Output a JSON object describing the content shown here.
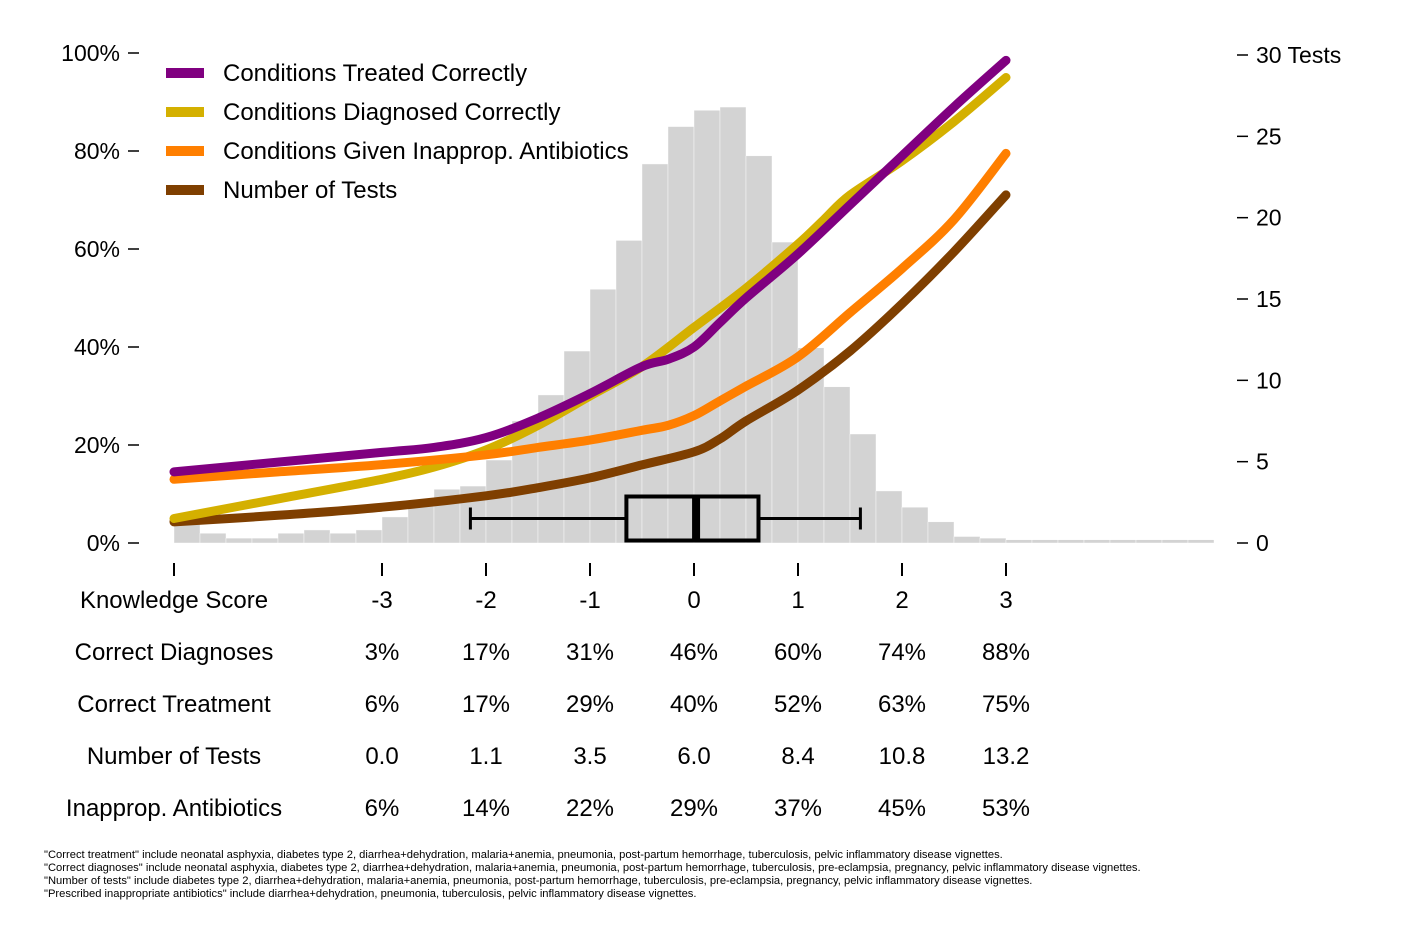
{
  "chart_data": {
    "type": "line",
    "x_axis": {
      "label": "Knowledge Score",
      "ticks": [
        -3,
        -2,
        -1,
        0,
        1,
        2,
        3
      ],
      "tick_labels": [
        "-3",
        "-2",
        "-1",
        "0",
        "1",
        "2",
        "3"
      ],
      "range": [
        -5,
        5
      ]
    },
    "y_left": {
      "ticks": [
        0,
        20,
        40,
        60,
        80,
        100
      ],
      "tick_labels": [
        "0%",
        "20%",
        "40%",
        "60%",
        "80%",
        "100%"
      ],
      "range": [
        0,
        100
      ]
    },
    "y_right": {
      "ticks": [
        0,
        5,
        10,
        15,
        20,
        25,
        30
      ],
      "tick_labels": [
        "0",
        "5",
        "10",
        "15",
        "20",
        "25",
        "30 Tests"
      ],
      "range": [
        0,
        30
      ]
    },
    "legend": {
      "placement": "top-left",
      "items": [
        {
          "label": "Conditions Treated Correctly",
          "color": "#800080"
        },
        {
          "label": "Conditions Diagnosed Correctly",
          "color": "#d4b000"
        },
        {
          "label": "Conditions Given Inapprop. Antibiotics",
          "color": "#ff7f00"
        },
        {
          "label": "Number of Tests",
          "color": "#7f3f00"
        }
      ]
    },
    "series": [
      {
        "name": "Conditions Treated Correctly",
        "axis": "left",
        "color": "#800080",
        "x": [
          -5,
          -4,
          -3,
          -2.5,
          -2,
          -1.5,
          -1,
          -0.5,
          -0.25,
          0,
          0.25,
          0.5,
          1,
          1.5,
          2,
          2.5,
          3
        ],
        "y": [
          14.5,
          16.5,
          18.5,
          19.5,
          21.5,
          25.5,
          30.5,
          36,
          37.5,
          40,
          45,
          50,
          59,
          69,
          79,
          89,
          98.5
        ]
      },
      {
        "name": "Conditions Diagnosed Correctly",
        "axis": "left",
        "color": "#d4b000",
        "x": [
          -5,
          -4,
          -3,
          -2.5,
          -2,
          -1.5,
          -1,
          -0.5,
          0,
          0.5,
          1,
          1.25,
          1.5,
          2,
          2.5,
          3
        ],
        "y": [
          5,
          9,
          13,
          15.5,
          19,
          24,
          30,
          36,
          44,
          52,
          61,
          66,
          71,
          78,
          86,
          95
        ]
      },
      {
        "name": "Conditions Given Inapprop. Antibiotics",
        "axis": "left",
        "color": "#ff7f00",
        "x": [
          -5,
          -4,
          -3,
          -2,
          -1.5,
          -1,
          -0.5,
          -0.25,
          0,
          0.25,
          0.5,
          1,
          1.5,
          2,
          2.5,
          3
        ],
        "y": [
          13,
          14.5,
          16,
          18,
          19.5,
          21,
          23,
          24,
          26,
          29,
          32,
          38,
          47,
          56,
          66,
          79.5
        ]
      },
      {
        "name": "Number of Tests",
        "axis": "right",
        "color": "#7f3f00",
        "x": [
          -5,
          -4,
          -3,
          -2,
          -1.5,
          -1,
          -0.5,
          0,
          0.25,
          0.5,
          1,
          1.5,
          2,
          2.5,
          3
        ],
        "y": [
          1.3,
          1.7,
          2.2,
          2.9,
          3.4,
          4.0,
          4.8,
          5.6,
          6.4,
          7.5,
          9.4,
          11.8,
          14.7,
          17.9,
          21.4
        ]
      }
    ],
    "histogram": {
      "axis": "right",
      "color": "#d3d3d3",
      "bin_width": 0.25,
      "bins_start": [
        -5,
        -4.75,
        -4.5,
        -4.25,
        -4,
        -3.75,
        -3.5,
        -3.25,
        -3,
        -2.75,
        -2.5,
        -2.25,
        -2,
        -1.75,
        -1.5,
        -1.25,
        -1,
        -0.75,
        -0.5,
        -0.25,
        0,
        0.25,
        0.5,
        0.75,
        1,
        1.25,
        1.5,
        1.75,
        2,
        2.25,
        2.5,
        2.75,
        3,
        3.25,
        3.5,
        3.75,
        4,
        4.25,
        4.5,
        4.75
      ],
      "heights": [
        1.3,
        0.6,
        0.3,
        0.3,
        0.6,
        0.8,
        0.6,
        0.8,
        1.6,
        2.5,
        3.3,
        3.5,
        5.1,
        7.5,
        9.1,
        11.8,
        15.6,
        18.6,
        23.3,
        25.6,
        26.6,
        26.8,
        23.8,
        18.5,
        12.0,
        9.6,
        6.7,
        3.2,
        2.2,
        1.3,
        0.4,
        0.3,
        0.2,
        0.2,
        0.2,
        0.2,
        0.2,
        0.2,
        0.2,
        0.2
      ]
    },
    "boxplot": {
      "axis": "left",
      "y_position": 5,
      "whisker_low": -2.15,
      "q1": -0.65,
      "median": 0.02,
      "q3": 0.62,
      "whisker_high": 1.6
    },
    "table": {
      "header_label": "Knowledge Score",
      "columns": [
        "-3",
        "-2",
        "-1",
        "0",
        "1",
        "2",
        "3"
      ],
      "rows": [
        {
          "label": "Correct Diagnoses",
          "values": [
            "3%",
            "17%",
            "31%",
            "46%",
            "60%",
            "74%",
            "88%"
          ]
        },
        {
          "label": "Correct Treatment",
          "values": [
            "6%",
            "17%",
            "29%",
            "40%",
            "52%",
            "63%",
            "75%"
          ]
        },
        {
          "label": "Number of Tests",
          "values": [
            "0.0",
            "1.1",
            "3.5",
            "6.0",
            "8.4",
            "10.8",
            "13.2"
          ]
        },
        {
          "label": "Inapprop. Antibiotics",
          "values": [
            "6%",
            "14%",
            "22%",
            "29%",
            "37%",
            "45%",
            "53%"
          ]
        }
      ]
    }
  },
  "footnotes": [
    "\"Correct treatment\" include neonatal asphyxia, diabetes type 2, diarrhea+dehydration, malaria+anemia, pneumonia, post-partum hemorrhage, tuberculosis, pelvic inflammatory disease vignettes.",
    "\"Correct diagnoses\" include neonatal asphyxia, diabetes type 2, diarrhea+dehydration, malaria+anemia, pneumonia, post-partum hemorrhage, tuberculosis, pre-eclampsia, pregnancy, pelvic inflammatory disease vignettes.",
    "\"Number of tests\" include diabetes type 2, diarrhea+dehydration, malaria+anemia, pneumonia, post-partum hemorrhage, tuberculosis, pre-eclampsia, pregnancy, pelvic inflammatory disease vignettes.",
    "\"Prescribed inappropriate antibiotics\" include diarrhea+dehydration, pneumonia, tuberculosis, pelvic inflammatory disease vignettes."
  ]
}
